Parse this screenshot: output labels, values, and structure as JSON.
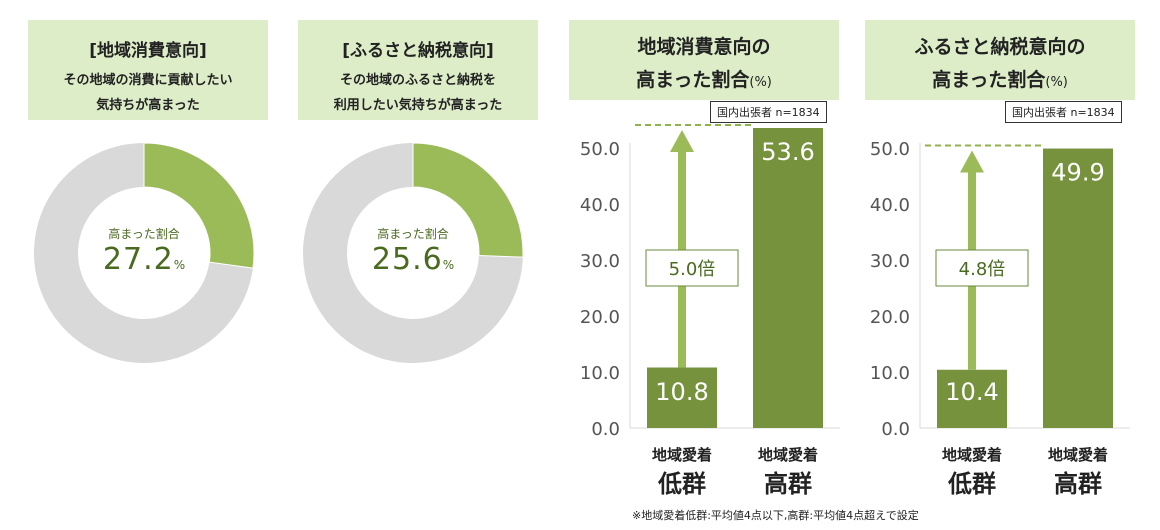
{
  "colors": {
    "green_light": "#9bbb59",
    "green_dark": "#76923c",
    "gray": "#d9d9d9",
    "header_bg": "#dcedc8",
    "dash": "#8fb34a"
  },
  "donuts": [
    {
      "header_title": "[地域消費意向]",
      "header_sub1": "その地域の消費に貢献したい",
      "header_sub2": "気持ちが高まった",
      "center_label": "高まった割合",
      "value_text": "27.2",
      "unit": "%",
      "value": 27.2
    },
    {
      "header_title": "[ふるさと納税意向]",
      "header_sub1": "その地域のふるさと納税を",
      "header_sub2": "利用したい気持ちが高まった",
      "center_label": "高まった割合",
      "value_text": "25.6",
      "unit": "%",
      "value": 25.6
    }
  ],
  "charts_header": [
    {
      "line1": "地域消費意向の",
      "line2": "高まった割合",
      "unit": "(%)"
    },
    {
      "line1": "ふるさと納税意向の",
      "line2": "高まった割合",
      "unit": "(%)"
    }
  ],
  "chart_data": [
    {
      "type": "bar",
      "title": "地域消費意向の高まった割合(%)",
      "note": "国内出張者 n=1834",
      "categories": [
        "地域愛着低群",
        "地域愛着高群"
      ],
      "values": [
        10.8,
        53.6
      ],
      "ylim": [
        0,
        50
      ],
      "yticks": [
        "0.0",
        "10.0",
        "20.0",
        "30.0",
        "40.0",
        "50.0"
      ],
      "annotation": "5.0倍",
      "value_labels": [
        "10.8",
        "53.6"
      ],
      "cat_top": [
        "地域愛着",
        "地域愛着"
      ],
      "cat_bottom": [
        "低群",
        "高群"
      ]
    },
    {
      "type": "bar",
      "title": "ふるさと納税意向の高まった割合(%)",
      "note": "国内出張者 n=1834",
      "categories": [
        "地域愛着低群",
        "地域愛着高群"
      ],
      "values": [
        10.4,
        49.9
      ],
      "ylim": [
        0,
        50
      ],
      "yticks": [
        "0.0",
        "10.0",
        "20.0",
        "30.0",
        "40.0",
        "50.0"
      ],
      "annotation": "4.8倍",
      "value_labels": [
        "10.4",
        "49.9"
      ],
      "cat_top": [
        "地域愛着",
        "地域愛着"
      ],
      "cat_bottom": [
        "低群",
        "高群"
      ]
    }
  ],
  "footnote": "※地域愛着低群:平均値4点以下,高群:平均値4点超えで設定"
}
